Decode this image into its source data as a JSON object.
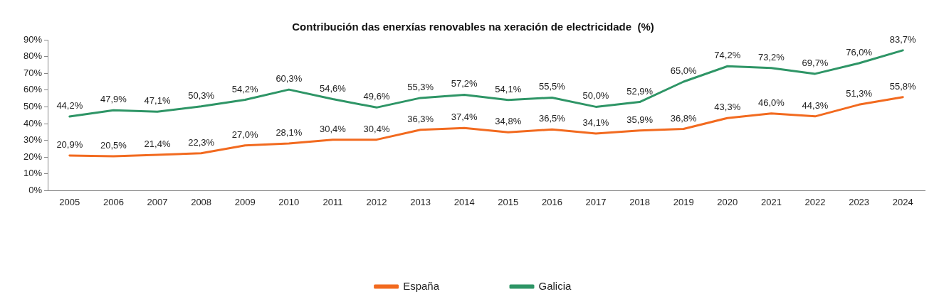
{
  "chart_data": {
    "type": "line",
    "title": "Contribución das enerxías renovables na xeración de electricidade  (%)",
    "categories": [
      "2005",
      "2006",
      "2007",
      "2008",
      "2009",
      "2010",
      "2011",
      "2012",
      "2013",
      "2014",
      "2015",
      "2016",
      "2017",
      "2018",
      "2019",
      "2020",
      "2021",
      "2022",
      "2023",
      "2024"
    ],
    "series": [
      {
        "name": "España",
        "color": "#f26a1f",
        "values": [
          20.9,
          20.5,
          21.4,
          22.3,
          27.0,
          28.1,
          30.4,
          30.4,
          36.3,
          37.4,
          34.8,
          36.5,
          34.1,
          35.9,
          36.8,
          43.3,
          46.0,
          44.3,
          51.3,
          55.8
        ],
        "value_labels": [
          "20,9%",
          "20,5%",
          "21,4%",
          "22,3%",
          "27,0%",
          "28,1%",
          "30,4%",
          "30,4%",
          "36,3%",
          "37,4%",
          "34,8%",
          "36,5%",
          "34,1%",
          "35,9%",
          "36,8%",
          "43,3%",
          "46,0%",
          "44,3%",
          "51,3%",
          "55,8%"
        ]
      },
      {
        "name": "Galicia",
        "color": "#2e9566",
        "values": [
          44.2,
          47.9,
          47.1,
          50.3,
          54.2,
          60.3,
          54.6,
          49.6,
          55.3,
          57.2,
          54.1,
          55.5,
          50.0,
          52.9,
          65.0,
          74.2,
          73.2,
          69.7,
          76.0,
          83.7
        ],
        "value_labels": [
          "44,2%",
          "47,9%",
          "47,1%",
          "50,3%",
          "54,2%",
          "60,3%",
          "54,6%",
          "49,6%",
          "55,3%",
          "57,2%",
          "54,1%",
          "55,5%",
          "50,0%",
          "52,9%",
          "65,0%",
          "74,2%",
          "73,2%",
          "69,7%",
          "76,0%",
          "83,7%"
        ]
      }
    ],
    "ylim": [
      0,
      90
    ],
    "yticks": [
      {
        "value": 0,
        "label": "0%"
      },
      {
        "value": 10,
        "label": "10%"
      },
      {
        "value": 20,
        "label": "20%"
      },
      {
        "value": 30,
        "label": "30%"
      },
      {
        "value": 40,
        "label": "40%"
      },
      {
        "value": 50,
        "label": "50%"
      },
      {
        "value": 60,
        "label": "60%"
      },
      {
        "value": 70,
        "label": "70%"
      },
      {
        "value": 80,
        "label": "80%"
      },
      {
        "value": 90,
        "label": "90%"
      }
    ],
    "grid": false,
    "legend": "bottom",
    "marker": "none",
    "line_style": "solid"
  }
}
